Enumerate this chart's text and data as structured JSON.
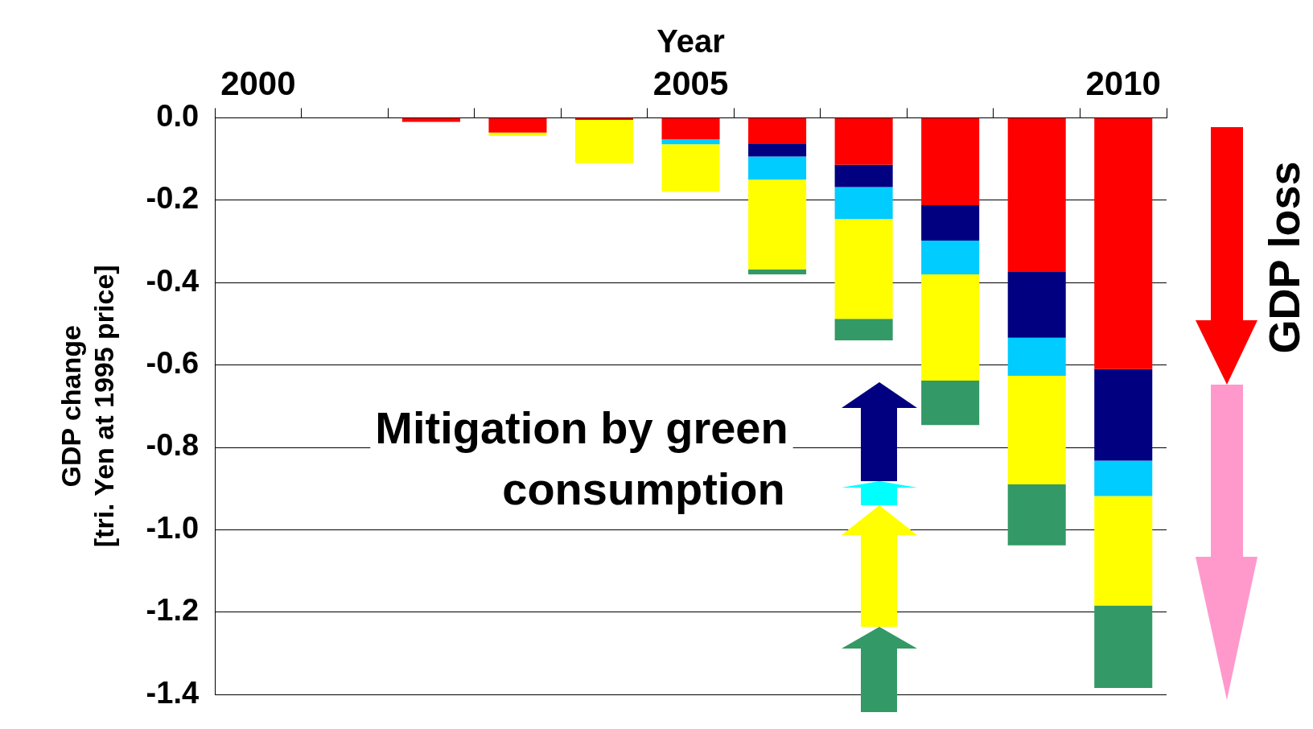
{
  "chart_data": {
    "type": "bar",
    "stacked": true,
    "xlabel": "Year",
    "ylabel": "GDP change\n[tri. Yen at 1995 price]",
    "categories": [
      "2000",
      null,
      null,
      null,
      null,
      "2005",
      null,
      null,
      null,
      null,
      "2010"
    ],
    "series": [
      {
        "color": "#ff0000",
        "values": [
          0,
          0,
          -0.01,
          -0.036,
          -0.005,
          -0.052,
          -0.062,
          -0.114,
          -0.212,
          -0.374,
          -0.61
        ]
      },
      {
        "color": "#000080",
        "values": [
          0,
          0,
          0,
          0,
          0,
          0,
          -0.032,
          -0.054,
          -0.086,
          -0.16,
          -0.222
        ]
      },
      {
        "color": "#00ccff",
        "values": [
          0,
          0,
          0,
          0,
          0,
          -0.012,
          -0.056,
          -0.078,
          -0.082,
          -0.092,
          -0.086
        ]
      },
      {
        "color": "#ffff00",
        "values": [
          0,
          0,
          0,
          -0.008,
          -0.105,
          -0.116,
          -0.218,
          -0.242,
          -0.258,
          -0.264,
          -0.266
        ]
      },
      {
        "color": "#339966",
        "values": [
          0,
          0,
          0,
          0,
          0,
          0,
          -0.012,
          -0.052,
          -0.108,
          -0.148,
          -0.2
        ]
      }
    ],
    "ylim": [
      -1.4,
      0
    ],
    "yticks": [
      {
        "value": 0,
        "label": "0.0"
      },
      {
        "value": -0.2,
        "label": "-0.2"
      },
      {
        "value": -0.4,
        "label": "-0.4"
      },
      {
        "value": -0.6,
        "label": "-0.6"
      },
      {
        "value": -0.8,
        "label": "-0.8"
      },
      {
        "value": -1.0,
        "label": "-1.0"
      },
      {
        "value": -1.2,
        "label": "-1.2"
      },
      {
        "value": -1.4,
        "label": "-1.4"
      }
    ],
    "grid": "y",
    "annotations": [
      "Mitigation by green consumption",
      "GDP loss"
    ]
  }
}
